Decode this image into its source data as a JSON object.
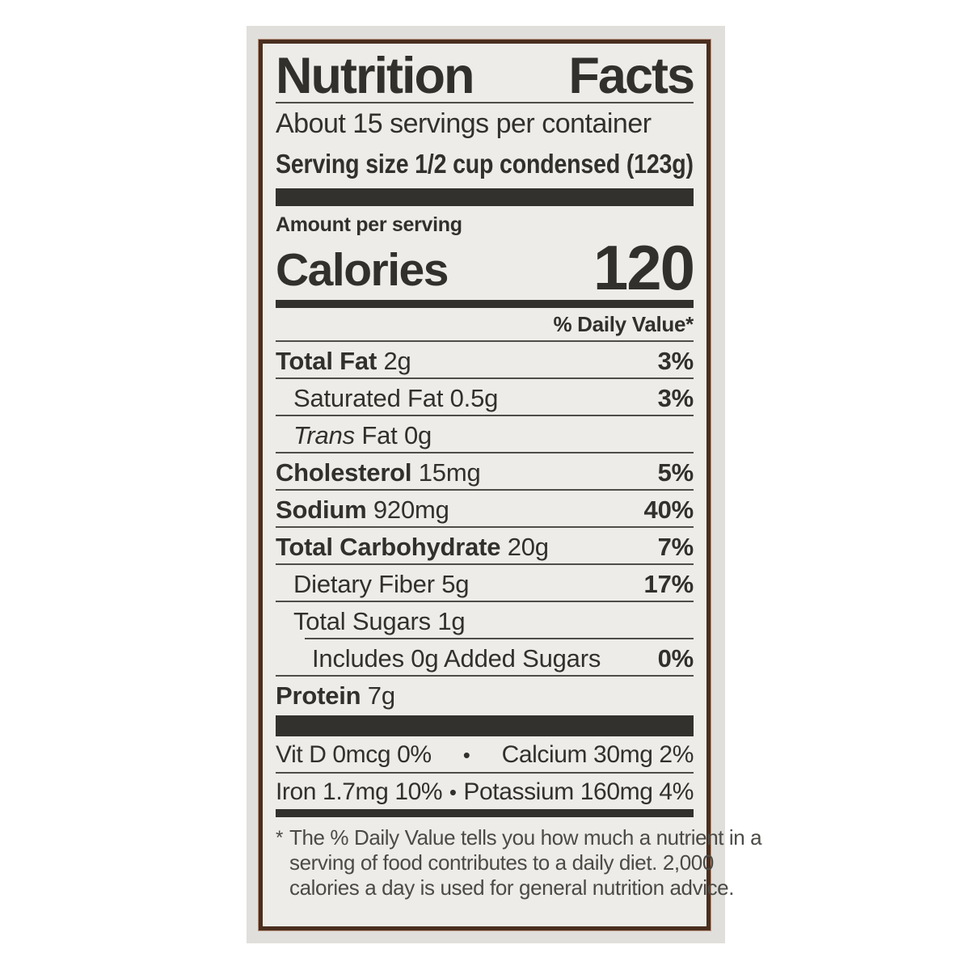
{
  "colors": {
    "page-bg": "#ffffff",
    "panel-bg": "#e0dfdb",
    "label-bg": "#edece8",
    "border": "#4a2e1f",
    "ink": "#31302c",
    "bar": "#32312d"
  },
  "label": {
    "title_left": "Nutrition",
    "title_right": "Facts",
    "servings_per_container": "About 15 servings per container",
    "serving_size": "Serving size 1/2 cup condensed (123g)",
    "amount_per_serving": "Amount per serving",
    "calories_label": "Calories",
    "calories_value": "120",
    "daily_value_header": "% Daily Value*",
    "rows": [
      {
        "bold": "Total Fat",
        "reg": " 2g",
        "dv": "3%"
      },
      {
        "bold": "",
        "reg": "Saturated Fat 0.5g",
        "dv": "3%"
      },
      {
        "italic": "Trans",
        "reg": " Fat 0g",
        "dv": ""
      },
      {
        "bold": "Cholesterol",
        "reg": " 15mg",
        "dv": "5%"
      },
      {
        "bold": "Sodium",
        "reg": " 920mg",
        "dv": "40%"
      },
      {
        "bold": "Total Carbohydrate",
        "reg": " 20g",
        "dv": "7%"
      },
      {
        "bold": "",
        "reg": "Dietary Fiber 5g",
        "dv": "17%"
      },
      {
        "bold": "",
        "reg": "Total Sugars 1g",
        "dv": ""
      },
      {
        "bold": "",
        "reg": "Includes 0g Added Sugars",
        "dv": "0%"
      },
      {
        "bold": "Protein",
        "reg": " 7g",
        "dv": ""
      }
    ],
    "bullet": "•",
    "vitamins": [
      {
        "left": "Vit D 0mcg 0%",
        "right": "Calcium 30mg 2%"
      },
      {
        "left": "Iron 1.7mg 10%",
        "right": "Potassium 160mg 4%"
      }
    ],
    "footnote_star": "*",
    "footnote_lines": [
      "The % Daily Value tells you how much a nutrient in a",
      "serving of food contributes to a daily diet. 2,000",
      "calories a day is used for general nutrition advice."
    ]
  }
}
